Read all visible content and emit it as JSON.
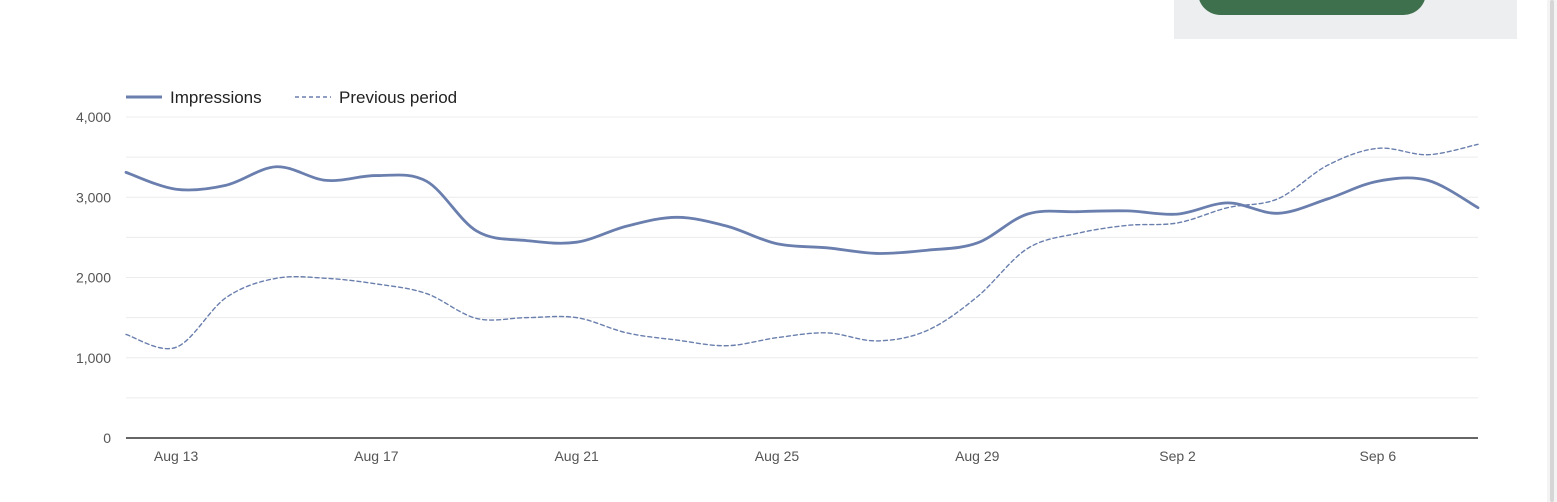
{
  "colors": {
    "series": "#6a7fae",
    "grid": "#ececec",
    "axis": "#333333",
    "panel": "#eceeef",
    "button": "#3f704d"
  },
  "chart_data": {
    "type": "line",
    "x": [
      "Aug 12",
      "Aug 13",
      "Aug 14",
      "Aug 15",
      "Aug 16",
      "Aug 17",
      "Aug 18",
      "Aug 19",
      "Aug 20",
      "Aug 21",
      "Aug 22",
      "Aug 23",
      "Aug 24",
      "Aug 25",
      "Aug 26",
      "Aug 27",
      "Aug 28",
      "Aug 29",
      "Aug 30",
      "Aug 31",
      "Sep 1",
      "Sep 2",
      "Sep 3",
      "Sep 4",
      "Sep 5",
      "Sep 6",
      "Sep 7",
      "Sep 8"
    ],
    "x_tick_labels": [
      "Aug 13",
      "Aug 17",
      "Aug 21",
      "Aug 25",
      "Aug 29",
      "Sep 2",
      "Sep 6"
    ],
    "y_tick_labels": [
      "0",
      "1,000",
      "2,000",
      "3,000",
      "4,000"
    ],
    "ylim": [
      0,
      4000
    ],
    "y_ticks": [
      0,
      1000,
      2000,
      3000,
      4000
    ],
    "grid": true,
    "legend_position": "top-left",
    "series": [
      {
        "name": "Impressions",
        "style": "solid",
        "values": [
          3310,
          3100,
          3150,
          3380,
          3210,
          3270,
          3200,
          2580,
          2460,
          2440,
          2640,
          2750,
          2640,
          2420,
          2370,
          2300,
          2340,
          2430,
          2790,
          2820,
          2830,
          2790,
          2930,
          2800,
          2980,
          3200,
          3210,
          2870
        ]
      },
      {
        "name": "Previous period",
        "style": "dashed",
        "values": [
          1290,
          1130,
          1750,
          1990,
          1990,
          1920,
          1800,
          1490,
          1500,
          1500,
          1310,
          1220,
          1150,
          1250,
          1310,
          1210,
          1340,
          1760,
          2360,
          2550,
          2650,
          2680,
          2870,
          2980,
          3400,
          3610,
          3530,
          3660
        ]
      }
    ]
  }
}
